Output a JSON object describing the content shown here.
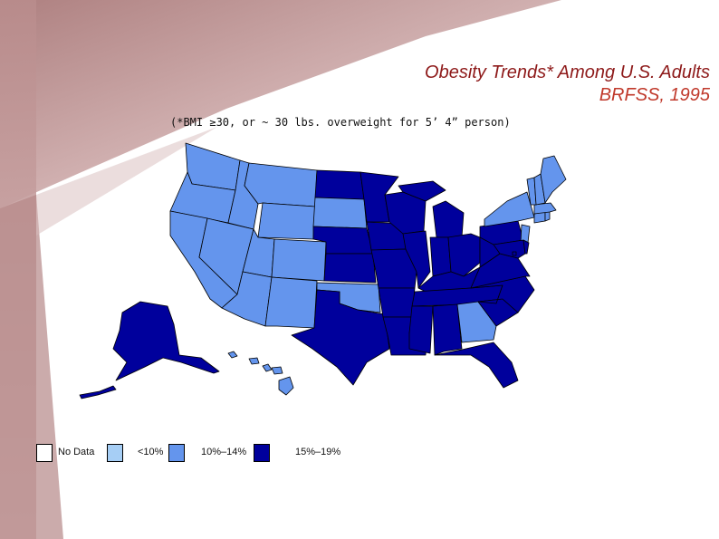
{
  "title": {
    "line1": "Obesity Trends* Among U.S. Adults",
    "line2": "BRFSS, 1995"
  },
  "subtitle": "(*BMI ≥30, or ~ 30 lbs. overweight for 5’ 4” person)",
  "colors": {
    "no_data": "#ffffff",
    "lt10": "#a6cef5",
    "10to14": "#6495ed",
    "15to19": "#00009c",
    "border": "#000000",
    "bg_wash": "#b98c8c"
  },
  "legend": [
    {
      "key": "no_data",
      "label": "No Data"
    },
    {
      "key": "lt10",
      "label": "<10%"
    },
    {
      "key": "10to14",
      "label": "10%–14%"
    },
    {
      "key": "15to19",
      "label": "15%–19%"
    }
  ],
  "states": {
    "WA": "10to14",
    "OR": "10to14",
    "CA": "10to14",
    "ID": "10to14",
    "NV": "10to14",
    "MT": "10to14",
    "WY": "10to14",
    "UT": "10to14",
    "AZ": "10to14",
    "CO": "10to14",
    "NM": "10to14",
    "SD": "10to14",
    "OK": "10to14",
    "GA": "10to14",
    "ME": "10to14",
    "NH": "10to14",
    "VT": "10to14",
    "MA": "10to14",
    "RI": "10to14",
    "CT": "10to14",
    "NY": "10to14",
    "NJ": "10to14",
    "HI": "10to14",
    "ND": "15to19",
    "NE": "15to19",
    "KS": "15to19",
    "TX": "15to19",
    "MN": "15to19",
    "IA": "15to19",
    "MO": "15to19",
    "AR": "15to19",
    "LA": "15to19",
    "WI": "15to19",
    "IL": "15to19",
    "MS": "15to19",
    "MI": "15to19",
    "IN": "15to19",
    "KY": "15to19",
    "TN": "15to19",
    "AL": "15to19",
    "OH": "15to19",
    "WV": "15to19",
    "VA": "15to19",
    "NC": "15to19",
    "SC": "15to19",
    "FL": "15to19",
    "PA": "15to19",
    "MD": "15to19",
    "DE": "15to19",
    "DC": "15to19",
    "AK": "15to19"
  }
}
